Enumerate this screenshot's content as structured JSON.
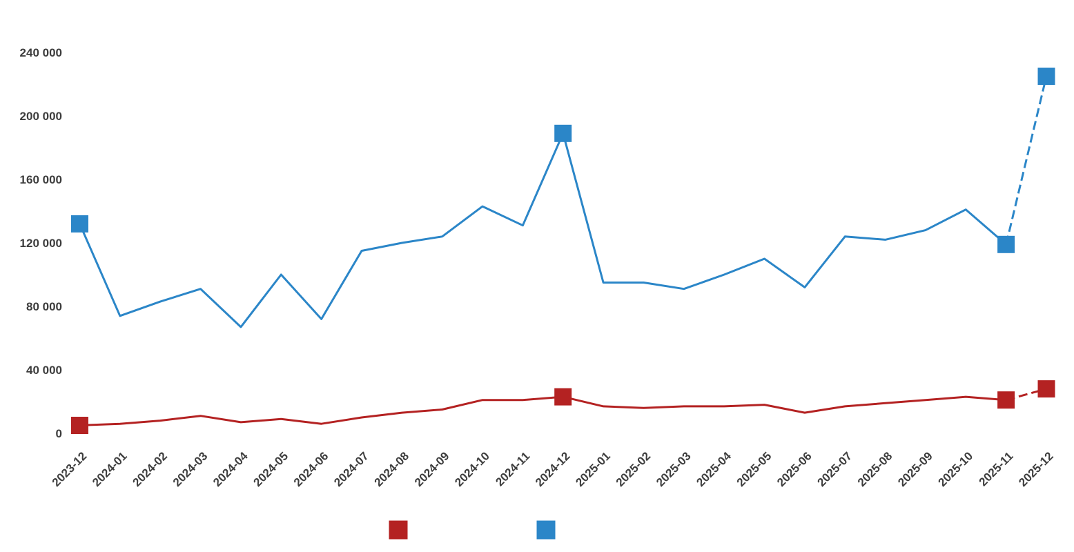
{
  "chart_data": {
    "type": "line",
    "title": "",
    "xlabel": "",
    "ylabel": "",
    "grid": false,
    "legend_position": "bottom",
    "ylim": [
      0,
      240000
    ],
    "x": [
      "2023-12",
      "2024-01",
      "2024-02",
      "2024-03",
      "2024-04",
      "2024-05",
      "2024-06",
      "2024-07",
      "2024-08",
      "2024-09",
      "2024-10",
      "2024-11",
      "2024-12",
      "2025-01",
      "2025-02",
      "2025-03",
      "2025-04",
      "2025-05",
      "2025-06",
      "2025-07",
      "2025-08",
      "2025-09",
      "2025-10",
      "2025-11",
      "2025-12"
    ],
    "yticks": [
      {
        "value": 0,
        "label": "0"
      },
      {
        "value": 40000,
        "label": "40 000"
      },
      {
        "value": 80000,
        "label": "80 000"
      },
      {
        "value": 120000,
        "label": "120 000"
      },
      {
        "value": 160000,
        "label": "160 000"
      },
      {
        "value": 200000,
        "label": "200 000"
      },
      {
        "value": 240000,
        "label": "240 000"
      }
    ],
    "series": [
      {
        "name": "red",
        "color": "#b42222",
        "values": [
          5000,
          6000,
          8000,
          11000,
          7000,
          9000,
          6000,
          10000,
          13000,
          15000,
          21000,
          21000,
          23000,
          17000,
          16000,
          17000,
          17000,
          18000,
          13000,
          17000,
          19000,
          21000,
          23000,
          21000,
          28000
        ],
        "marker_indices": [
          0,
          12,
          23,
          24
        ],
        "marker_shape": "square",
        "last_segment_dashed": true
      },
      {
        "name": "blue",
        "color": "#2b86c8",
        "values": [
          132000,
          74000,
          83000,
          91000,
          67000,
          100000,
          72000,
          115000,
          120000,
          124000,
          143000,
          131000,
          189000,
          95000,
          95000,
          91000,
          100000,
          110000,
          92000,
          124000,
          122000,
          128000,
          141000,
          119000,
          225000
        ],
        "marker_indices": [
          0,
          12,
          23,
          24
        ],
        "marker_shape": "square",
        "last_segment_dashed": true
      }
    ]
  },
  "legend": {
    "swatches": [
      {
        "series": "red",
        "color": "#b42222",
        "label": ""
      },
      {
        "series": "blue",
        "color": "#2b86c8",
        "label": ""
      }
    ]
  },
  "colors": {
    "axis_text": "#3d3d3d",
    "background": "#ffffff"
  }
}
